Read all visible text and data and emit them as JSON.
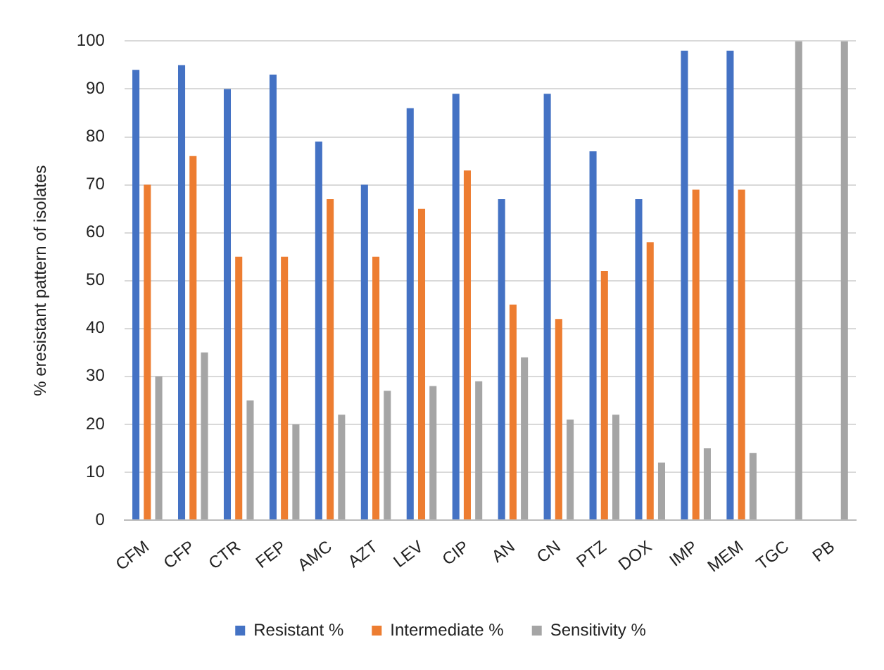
{
  "chart_data": {
    "type": "bar",
    "ylabel": "% eresistant pattern of isolates",
    "categories": [
      "CFM",
      "CFP",
      "CTR",
      "FEP",
      "AMC",
      "AZT",
      "LEV",
      "CIP",
      "AN",
      "CN",
      "PTZ",
      "DOX",
      "IMP",
      "MEM",
      "TGC",
      "PB"
    ],
    "series": [
      {
        "name": "Resistant %",
        "color": "#4472c4",
        "values": [
          94,
          95,
          90,
          93,
          79,
          70,
          86,
          89,
          67,
          89,
          77,
          67,
          98,
          98,
          0,
          0
        ]
      },
      {
        "name": "Intermediate %",
        "color": "#ed7d31",
        "values": [
          70,
          76,
          55,
          55,
          67,
          55,
          65,
          73,
          45,
          42,
          52,
          58,
          69,
          69,
          0,
          0
        ]
      },
      {
        "name": "Sensitivity %",
        "color": "#a5a5a5",
        "values": [
          30,
          35,
          25,
          20,
          22,
          27,
          28,
          29,
          34,
          21,
          22,
          12,
          15,
          14,
          100,
          100
        ]
      }
    ],
    "ylim": [
      0,
      100
    ],
    "yticks": [
      0,
      10,
      20,
      30,
      40,
      50,
      60,
      70,
      80,
      90,
      100
    ],
    "grid": "y",
    "legend": "bottom"
  }
}
